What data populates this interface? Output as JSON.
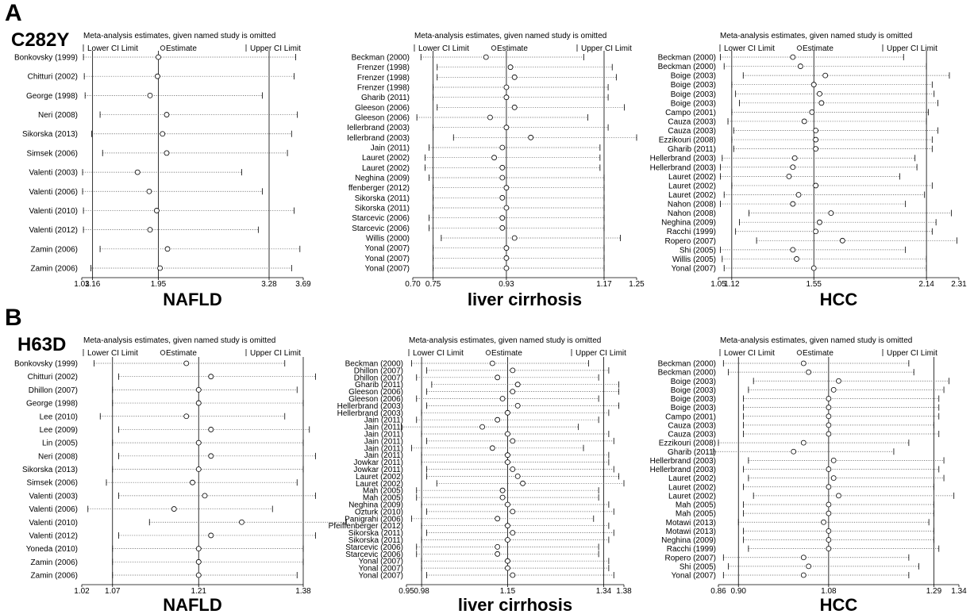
{
  "panel_labels": {
    "a": "A",
    "b": "B"
  },
  "gene_labels": {
    "a": "C282Y",
    "b": "H63D"
  },
  "header": {
    "title": "Meta-analysis estimates, given named study is omitted",
    "lower": "Lower CI Limit",
    "estimate": "Estimate",
    "upper": "Upper CI Limit"
  },
  "chart_data": [
    {
      "type": "forest",
      "row": "A",
      "col": 0,
      "xlabel": "NAFLD",
      "ticks": [
        1.03,
        1.16,
        1.95,
        3.28,
        3.69
      ],
      "tick_labels": [
        "1.03",
        "1.16",
        "1.95",
        "3.28",
        "3.69"
      ],
      "ref_lines": [
        1.16,
        1.95,
        3.28
      ],
      "studies": [
        {
          "label": "Bonkovsky (1999)",
          "lo": 1.05,
          "est": 1.95,
          "hi": 3.6
        },
        {
          "label": "Chitturi (2002)",
          "lo": 1.06,
          "est": 1.94,
          "hi": 3.58
        },
        {
          "label": "George (1998)",
          "lo": 1.07,
          "est": 1.85,
          "hi": 3.2
        },
        {
          "label": "Neri (2008)",
          "lo": 1.25,
          "est": 2.05,
          "hi": 3.62
        },
        {
          "label": "Sikorska (2013)",
          "lo": 1.15,
          "est": 2.0,
          "hi": 3.55
        },
        {
          "label": "Simsek (2006)",
          "lo": 1.28,
          "est": 2.05,
          "hi": 3.5
        },
        {
          "label": "Valenti (2003)",
          "lo": 1.04,
          "est": 1.7,
          "hi": 2.95
        },
        {
          "label": "Valenti (2006)",
          "lo": 1.04,
          "est": 1.84,
          "hi": 3.2
        },
        {
          "label": "Valenti (2010)",
          "lo": 1.05,
          "est": 1.93,
          "hi": 3.58
        },
        {
          "label": "Valenti (2012)",
          "lo": 1.05,
          "est": 1.85,
          "hi": 3.15
        },
        {
          "label": "Zamin (2006)",
          "lo": 1.25,
          "est": 2.06,
          "hi": 3.65
        },
        {
          "label": "Zamin (2006)",
          "lo": 1.14,
          "est": 1.97,
          "hi": 3.55
        }
      ]
    },
    {
      "type": "forest",
      "row": "A",
      "col": 1,
      "xlabel": "liver cirrhosis",
      "ticks": [
        0.7,
        0.75,
        0.93,
        1.17,
        1.25
      ],
      "tick_labels": [
        "0.70",
        "0.75",
        "0.93",
        "1.17",
        "1.25"
      ],
      "ref_lines": [
        0.75,
        0.93,
        1.17
      ],
      "studies": [
        {
          "label": "Beckman (2000)",
          "lo": 0.72,
          "est": 0.88,
          "hi": 1.12
        },
        {
          "label": "Frenzer (1998)",
          "lo": 0.76,
          "est": 0.94,
          "hi": 1.19
        },
        {
          "label": "Frenzer (1998)",
          "lo": 0.76,
          "est": 0.95,
          "hi": 1.2
        },
        {
          "label": "Frenzer (1998)",
          "lo": 0.75,
          "est": 0.93,
          "hi": 1.18
        },
        {
          "label": "Gharib (2011)",
          "lo": 0.75,
          "est": 0.93,
          "hi": 1.18
        },
        {
          "label": "Gleeson (2006)",
          "lo": 0.76,
          "est": 0.95,
          "hi": 1.22
        },
        {
          "label": "Gleeson (2006)",
          "lo": 0.71,
          "est": 0.89,
          "hi": 1.13
        },
        {
          "label": "Iellerbrand (2003)",
          "lo": 0.75,
          "est": 0.93,
          "hi": 1.18
        },
        {
          "label": "Iellerbrand (2003)",
          "lo": 0.8,
          "est": 0.99,
          "hi": 1.25
        },
        {
          "label": "Jain (2011)",
          "lo": 0.74,
          "est": 0.92,
          "hi": 1.16
        },
        {
          "label": "Lauret (2002)",
          "lo": 0.73,
          "est": 0.9,
          "hi": 1.16
        },
        {
          "label": "Lauret (2002)",
          "lo": 0.73,
          "est": 0.92,
          "hi": 1.16
        },
        {
          "label": "Neghina (2009)",
          "lo": 0.74,
          "est": 0.92,
          "hi": 1.17
        },
        {
          "label": "ffenberger (2012)",
          "lo": 0.75,
          "est": 0.93,
          "hi": 1.17
        },
        {
          "label": "Sikorska (2011)",
          "lo": 0.75,
          "est": 0.92,
          "hi": 1.17
        },
        {
          "label": "Sikorska (2011)",
          "lo": 0.75,
          "est": 0.93,
          "hi": 1.17
        },
        {
          "label": "Starcevic (2006)",
          "lo": 0.74,
          "est": 0.92,
          "hi": 1.17
        },
        {
          "label": "Starcevic (2006)",
          "lo": 0.74,
          "est": 0.92,
          "hi": 1.17
        },
        {
          "label": "Willis (2000)",
          "lo": 0.77,
          "est": 0.95,
          "hi": 1.21
        },
        {
          "label": "Yonal (2007)",
          "lo": 0.75,
          "est": 0.93,
          "hi": 1.17
        },
        {
          "label": "Yonal (2007)",
          "lo": 0.75,
          "est": 0.93,
          "hi": 1.17
        },
        {
          "label": "Yonal (2007)",
          "lo": 0.75,
          "est": 0.93,
          "hi": 1.17
        }
      ]
    },
    {
      "type": "forest",
      "row": "A",
      "col": 2,
      "xlabel": "HCC",
      "ticks": [
        1.05,
        1.12,
        1.55,
        2.14,
        2.31
      ],
      "tick_labels": [
        "1.05",
        "1.12",
        "1.55",
        "2.14",
        "2.31"
      ],
      "ref_lines": [
        1.12,
        1.55,
        2.14
      ],
      "studies": [
        {
          "label": "Beckman (2000)",
          "lo": 1.06,
          "est": 1.44,
          "hi": 2.02
        },
        {
          "label": "Beckman (2000)",
          "lo": 1.08,
          "est": 1.48,
          "hi": 2.14
        },
        {
          "label": "Boige (2003)",
          "lo": 1.18,
          "est": 1.61,
          "hi": 2.26
        },
        {
          "label": "Boige (2003)",
          "lo": 1.12,
          "est": 1.55,
          "hi": 2.17
        },
        {
          "label": "Boige (2003)",
          "lo": 1.14,
          "est": 1.58,
          "hi": 2.18
        },
        {
          "label": "Boige (2003)",
          "lo": 1.16,
          "est": 1.59,
          "hi": 2.2
        },
        {
          "label": "Campo (2001)",
          "lo": 1.12,
          "est": 1.54,
          "hi": 2.15
        },
        {
          "label": "Cauza (2003)",
          "lo": 1.1,
          "est": 1.5,
          "hi": 2.14
        },
        {
          "label": "Cauza (2003)",
          "lo": 1.13,
          "est": 1.56,
          "hi": 2.2
        },
        {
          "label": "Ezzikouri (2008)",
          "lo": 1.12,
          "est": 1.56,
          "hi": 2.17
        },
        {
          "label": "Gharib (2011)",
          "lo": 1.13,
          "est": 1.56,
          "hi": 2.17
        },
        {
          "label": "Hellerbrand (2003)",
          "lo": 1.07,
          "est": 1.45,
          "hi": 2.08
        },
        {
          "label": "Hellerbrand (2003)",
          "lo": 1.06,
          "est": 1.44,
          "hi": 2.09
        },
        {
          "label": "Lauret (2002)",
          "lo": 1.06,
          "est": 1.42,
          "hi": 2.0
        },
        {
          "label": "Lauret (2002)",
          "lo": 1.12,
          "est": 1.56,
          "hi": 2.17
        },
        {
          "label": "Lauret (2002)",
          "lo": 1.08,
          "est": 1.47,
          "hi": 2.13
        },
        {
          "label": "Nahon (2008)",
          "lo": 1.06,
          "est": 1.44,
          "hi": 2.03
        },
        {
          "label": "Nahon (2008)",
          "lo": 1.21,
          "est": 1.64,
          "hi": 2.27
        },
        {
          "label": "Neghina (2009)",
          "lo": 1.16,
          "est": 1.58,
          "hi": 2.19
        },
        {
          "label": "Racchi (1999)",
          "lo": 1.14,
          "est": 1.56,
          "hi": 2.17
        },
        {
          "label": "Ropero (2007)",
          "lo": 1.25,
          "est": 1.7,
          "hi": 2.3
        },
        {
          "label": "Shi (2005)",
          "lo": 1.06,
          "est": 1.44,
          "hi": 2.03
        },
        {
          "label": "Willis (2005)",
          "lo": 1.07,
          "est": 1.46,
          "hi": 2.14
        },
        {
          "label": "Yonal (2007)",
          "lo": 1.08,
          "est": 1.55,
          "hi": 2.14
        }
      ]
    },
    {
      "type": "forest",
      "row": "B",
      "col": 0,
      "xlabel": "NAFLD",
      "ticks": [
        1.02,
        1.07,
        1.21,
        1.38
      ],
      "tick_labels": [
        "1.02",
        "1.07",
        "1.21",
        "1.38"
      ],
      "ref_lines": [
        1.07,
        1.21,
        1.38
      ],
      "studies": [
        {
          "label": "Bonkovsky (1999)",
          "lo": 1.04,
          "est": 1.19,
          "hi": 1.35
        },
        {
          "label": "Chitturi (2002)",
          "lo": 1.08,
          "est": 1.23,
          "hi": 1.4
        },
        {
          "label": "Dhillon (2007)",
          "lo": 1.07,
          "est": 1.21,
          "hi": 1.37
        },
        {
          "label": "George (1998)",
          "lo": 1.07,
          "est": 1.21,
          "hi": 1.38
        },
        {
          "label": "Lee (2010)",
          "lo": 1.05,
          "est": 1.19,
          "hi": 1.35
        },
        {
          "label": "Lee (2009)",
          "lo": 1.08,
          "est": 1.23,
          "hi": 1.39
        },
        {
          "label": "Lin (2005)",
          "lo": 1.07,
          "est": 1.21,
          "hi": 1.38
        },
        {
          "label": "Neri (2008)",
          "lo": 1.08,
          "est": 1.23,
          "hi": 1.4
        },
        {
          "label": "Sikorska (2013)",
          "lo": 1.07,
          "est": 1.21,
          "hi": 1.38
        },
        {
          "label": "Simsek (2006)",
          "lo": 1.06,
          "est": 1.2,
          "hi": 1.37
        },
        {
          "label": "Valenti (2003)",
          "lo": 1.08,
          "est": 1.22,
          "hi": 1.4
        },
        {
          "label": "Valenti (2006)",
          "lo": 1.03,
          "est": 1.17,
          "hi": 1.33
        },
        {
          "label": "Valenti (2010)",
          "lo": 1.13,
          "est": 1.28,
          "hi": 1.45
        },
        {
          "label": "Valenti (2012)",
          "lo": 1.08,
          "est": 1.23,
          "hi": 1.4
        },
        {
          "label": "Yoneda (2010)",
          "lo": 1.07,
          "est": 1.21,
          "hi": 1.38
        },
        {
          "label": "Zamin (2006)",
          "lo": 1.07,
          "est": 1.21,
          "hi": 1.38
        },
        {
          "label": "Zamin (2006)",
          "lo": 1.07,
          "est": 1.21,
          "hi": 1.37
        }
      ]
    },
    {
      "type": "forest",
      "row": "B",
      "col": 1,
      "xlabel": "liver cirrhosis",
      "ticks": [
        0.95,
        0.98,
        1.15,
        1.34,
        1.38
      ],
      "tick_labels": [
        "0.95",
        "0.98",
        "1.15",
        "1.34",
        "1.38"
      ],
      "ref_lines": [
        0.98,
        1.15,
        1.34
      ],
      "studies": [
        {
          "label": "Beckman (2000)",
          "lo": 0.96,
          "est": 1.12,
          "hi": 1.31
        },
        {
          "label": "Dhillon (2007)",
          "lo": 0.99,
          "est": 1.16,
          "hi": 1.35
        },
        {
          "label": "Dhillon (2007)",
          "lo": 0.97,
          "est": 1.13,
          "hi": 1.33
        },
        {
          "label": "Gharib (2011)",
          "lo": 1.0,
          "est": 1.17,
          "hi": 1.37
        },
        {
          "label": "Gleeson (2006)",
          "lo": 0.99,
          "est": 1.16,
          "hi": 1.37
        },
        {
          "label": "Gleeson (2006)",
          "lo": 0.97,
          "est": 1.14,
          "hi": 1.33
        },
        {
          "label": "Hellerbrand (2003)",
          "lo": 0.99,
          "est": 1.17,
          "hi": 1.37
        },
        {
          "label": "Hellerbrand (2003)",
          "lo": 0.98,
          "est": 1.15,
          "hi": 1.35
        },
        {
          "label": "Jain (2011)",
          "lo": 0.97,
          "est": 1.13,
          "hi": 1.33
        },
        {
          "label": "Jain (2011)",
          "lo": 0.94,
          "est": 1.1,
          "hi": 1.29
        },
        {
          "label": "Jain (2011)",
          "lo": 0.98,
          "est": 1.15,
          "hi": 1.35
        },
        {
          "label": "Jain (2011)",
          "lo": 0.99,
          "est": 1.16,
          "hi": 1.36
        },
        {
          "label": "Jain (2011)",
          "lo": 0.96,
          "est": 1.12,
          "hi": 1.3
        },
        {
          "label": "Jain (2011)",
          "lo": 0.98,
          "est": 1.15,
          "hi": 1.35
        },
        {
          "label": "Jowkar (2011)",
          "lo": 0.98,
          "est": 1.15,
          "hi": 1.35
        },
        {
          "label": "Jowkar (2011)",
          "lo": 0.99,
          "est": 1.16,
          "hi": 1.36
        },
        {
          "label": "Lauret (2002)",
          "lo": 0.99,
          "est": 1.17,
          "hi": 1.37
        },
        {
          "label": "Lauret (2002)",
          "lo": 1.01,
          "est": 1.18,
          "hi": 1.38
        },
        {
          "label": "Mah (2005)",
          "lo": 0.97,
          "est": 1.14,
          "hi": 1.33
        },
        {
          "label": "Mah (2005)",
          "lo": 0.97,
          "est": 1.14,
          "hi": 1.33
        },
        {
          "label": "Neghina (2009)",
          "lo": 0.98,
          "est": 1.15,
          "hi": 1.35
        },
        {
          "label": "Ozturk (2010)",
          "lo": 0.99,
          "est": 1.16,
          "hi": 1.36
        },
        {
          "label": "Panigrahi (2006)",
          "lo": 0.96,
          "est": 1.13,
          "hi": 1.32
        },
        {
          "label": "Pfeiffenberger (2012)",
          "lo": 0.98,
          "est": 1.15,
          "hi": 1.35
        },
        {
          "label": "Sikorska (2011)",
          "lo": 0.99,
          "est": 1.16,
          "hi": 1.36
        },
        {
          "label": "Sikorska (2011)",
          "lo": 0.98,
          "est": 1.15,
          "hi": 1.35
        },
        {
          "label": "Starcevic (2006)",
          "lo": 0.97,
          "est": 1.13,
          "hi": 1.33
        },
        {
          "label": "Starcevic (2006)",
          "lo": 0.97,
          "est": 1.13,
          "hi": 1.33
        },
        {
          "label": "Yonal (2007)",
          "lo": 0.98,
          "est": 1.15,
          "hi": 1.35
        },
        {
          "label": "Yonal (2007)",
          "lo": 0.98,
          "est": 1.15,
          "hi": 1.35
        },
        {
          "label": "Yonal (2007)",
          "lo": 0.99,
          "est": 1.16,
          "hi": 1.36
        }
      ]
    },
    {
      "type": "forest",
      "row": "B",
      "col": 2,
      "xlabel": "HCC",
      "ticks": [
        0.86,
        0.9,
        1.08,
        1.29,
        1.34
      ],
      "tick_labels": [
        "0.86",
        "0.90",
        "1.08",
        "1.29",
        "1.34"
      ],
      "ref_lines": [
        0.9,
        1.08,
        1.29
      ],
      "studies": [
        {
          "label": "Beckman (2000)",
          "lo": 0.87,
          "est": 1.03,
          "hi": 1.24
        },
        {
          "label": "Beckman (2000)",
          "lo": 0.88,
          "est": 1.04,
          "hi": 1.25
        },
        {
          "label": "Boige (2003)",
          "lo": 0.93,
          "est": 1.1,
          "hi": 1.32
        },
        {
          "label": "Boige (2003)",
          "lo": 0.92,
          "est": 1.09,
          "hi": 1.31
        },
        {
          "label": "Boige (2003)",
          "lo": 0.91,
          "est": 1.08,
          "hi": 1.3
        },
        {
          "label": "Boige (2003)",
          "lo": 0.91,
          "est": 1.08,
          "hi": 1.3
        },
        {
          "label": "Campo (2001)",
          "lo": 0.91,
          "est": 1.08,
          "hi": 1.3
        },
        {
          "label": "Cauza (2003)",
          "lo": 0.91,
          "est": 1.08,
          "hi": 1.29
        },
        {
          "label": "Cauza (2003)",
          "lo": 0.91,
          "est": 1.08,
          "hi": 1.3
        },
        {
          "label": "Ezzikouri (2008)",
          "lo": 0.86,
          "est": 1.03,
          "hi": 1.24
        },
        {
          "label": "Gharib (2011)",
          "lo": 0.85,
          "est": 1.01,
          "hi": 1.21
        },
        {
          "label": "Hellerbrand (2003)",
          "lo": 0.92,
          "est": 1.09,
          "hi": 1.31
        },
        {
          "label": "Hellerbrand (2003)",
          "lo": 0.91,
          "est": 1.08,
          "hi": 1.3
        },
        {
          "label": "Lauret (2002)",
          "lo": 0.92,
          "est": 1.09,
          "hi": 1.31
        },
        {
          "label": "Lauret (2002)",
          "lo": 0.91,
          "est": 1.08,
          "hi": 1.29
        },
        {
          "label": "Lauret (2002)",
          "lo": 0.93,
          "est": 1.1,
          "hi": 1.33
        },
        {
          "label": "Mah (2005)",
          "lo": 0.91,
          "est": 1.08,
          "hi": 1.29
        },
        {
          "label": "Mah (2005)",
          "lo": 0.91,
          "est": 1.08,
          "hi": 1.29
        },
        {
          "label": "Motawi (2013)",
          "lo": 0.9,
          "est": 1.07,
          "hi": 1.28
        },
        {
          "label": "Motawi (2013)",
          "lo": 0.91,
          "est": 1.08,
          "hi": 1.29
        },
        {
          "label": "Neghina (2009)",
          "lo": 0.91,
          "est": 1.08,
          "hi": 1.29
        },
        {
          "label": "Racchi (1999)",
          "lo": 0.92,
          "est": 1.08,
          "hi": 1.3
        },
        {
          "label": "Ropero (2007)",
          "lo": 0.87,
          "est": 1.03,
          "hi": 1.24
        },
        {
          "label": "Shi (2005)",
          "lo": 0.88,
          "est": 1.04,
          "hi": 1.26
        },
        {
          "label": "Yonal (2007)",
          "lo": 0.87,
          "est": 1.03,
          "hi": 1.24
        }
      ]
    }
  ]
}
